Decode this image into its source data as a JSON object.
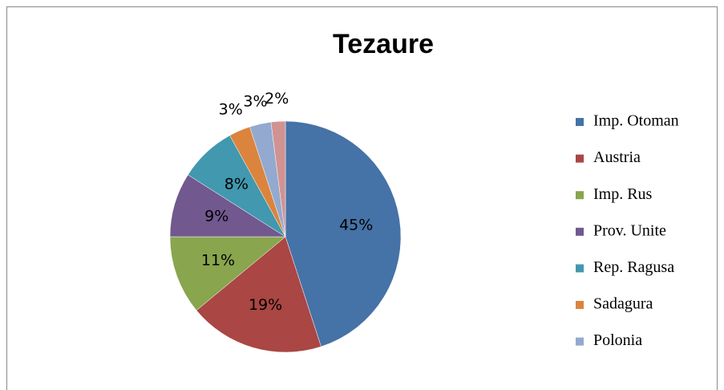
{
  "chart_data": {
    "type": "pie",
    "title": "Tezaure",
    "categories": [
      "Imp. Otoman",
      "Austria",
      "Imp. Rus",
      "Prov. Unite",
      "Rep. Ragusa",
      "Sadagura",
      "Polonia",
      null
    ],
    "values": [
      45,
      19,
      11,
      9,
      8,
      3,
      3,
      2
    ],
    "value_labels": [
      "45%",
      "19%",
      "11%",
      "9%",
      "8%",
      "3%",
      "3%",
      "2%"
    ],
    "colors": [
      "#4572a7",
      "#aa4643",
      "#89a54e",
      "#71588f",
      "#4198af",
      "#db843d",
      "#93a9cf",
      "#d19392"
    ],
    "legend": "right"
  }
}
